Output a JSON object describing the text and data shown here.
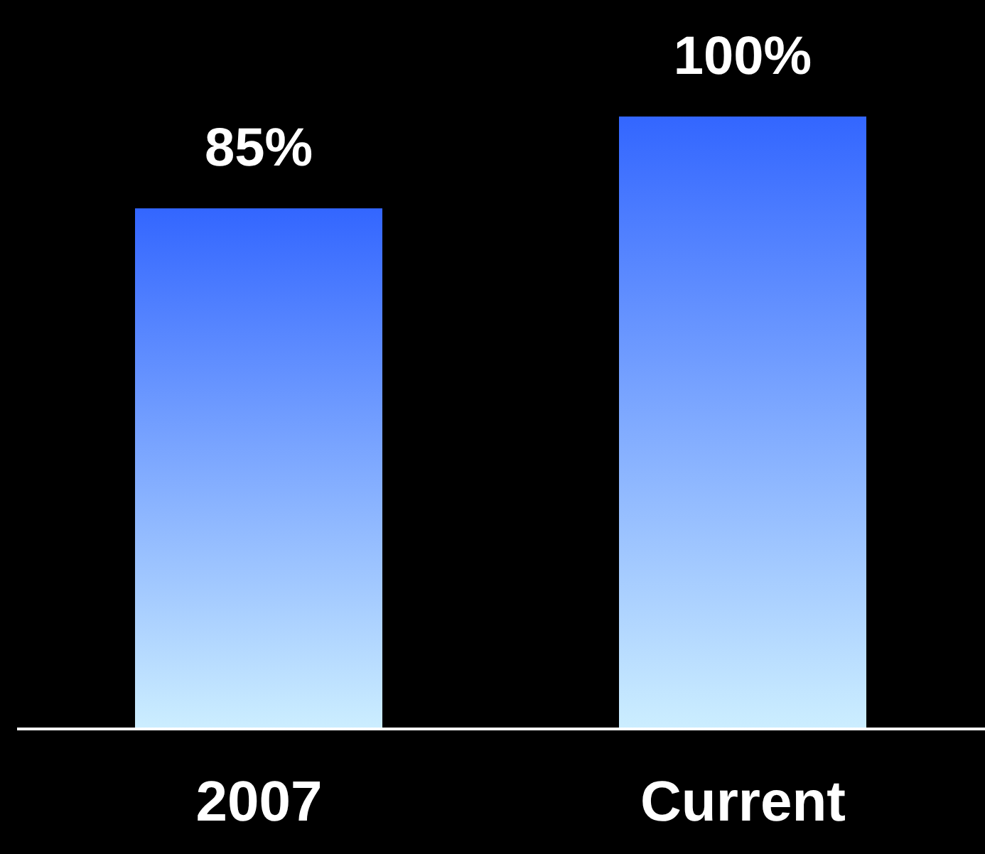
{
  "chart_data": {
    "type": "bar",
    "categories": [
      "2007",
      "Current"
    ],
    "values": [
      85,
      100
    ],
    "color": "#3366ff",
    "value_labels": [
      "85%",
      "100%"
    ],
    "grid": false,
    "legend": false
  }
}
